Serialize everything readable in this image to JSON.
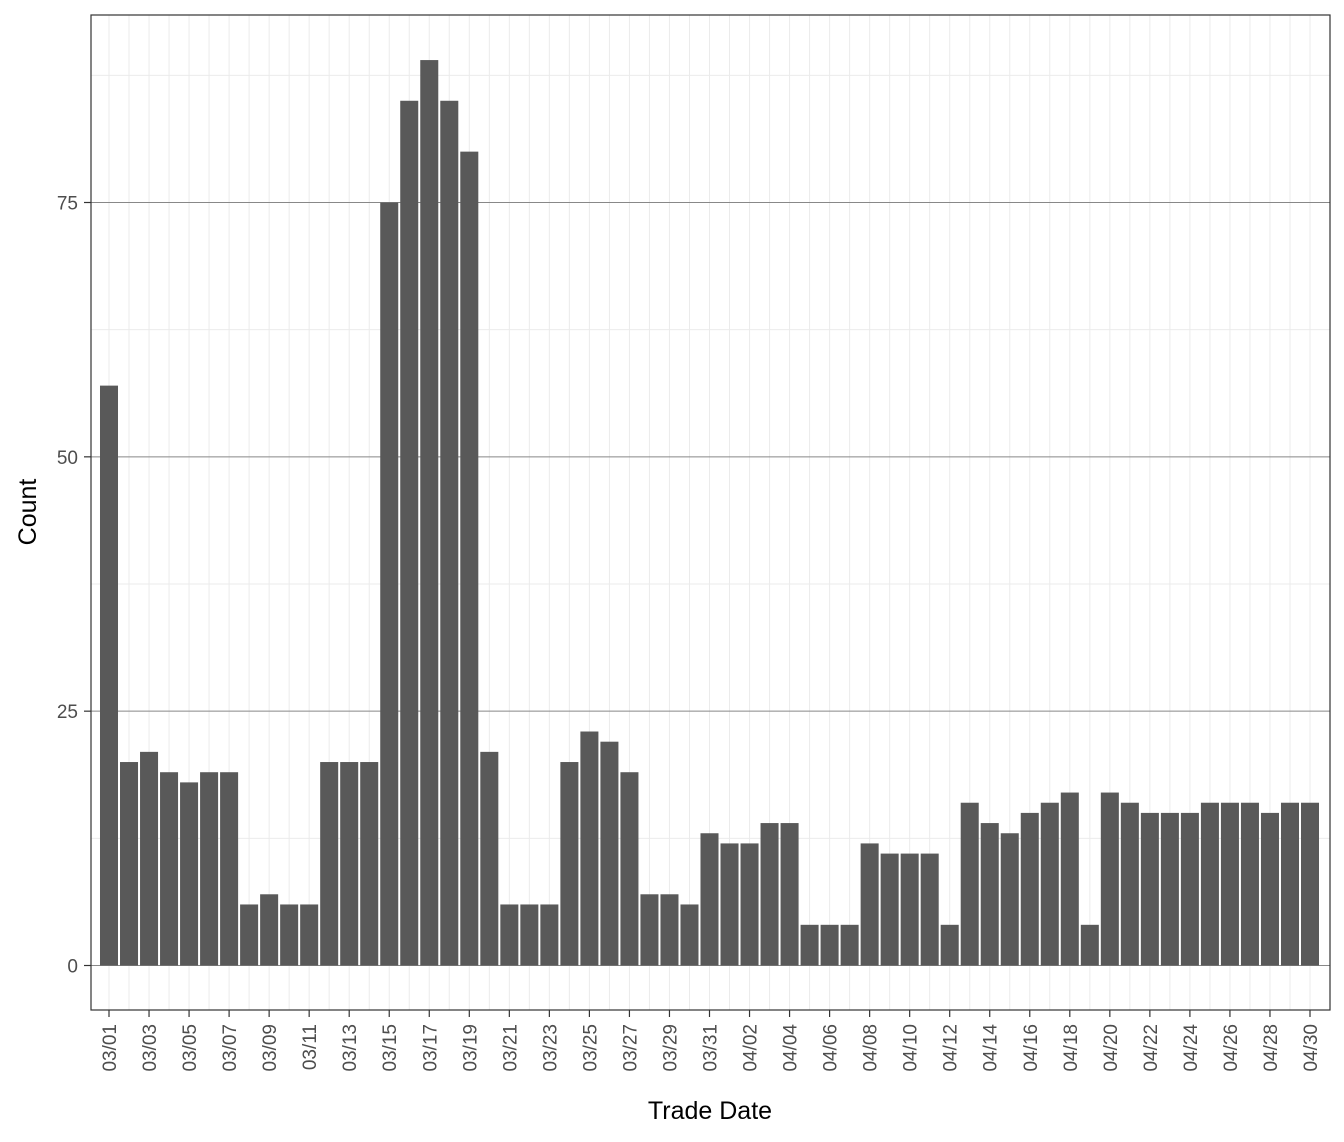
{
  "chart_data": {
    "type": "bar",
    "xlabel": "Trade Date",
    "ylabel": "Count",
    "ylim": [
      0,
      93.5
    ],
    "yticks": [
      0,
      25,
      50,
      75
    ],
    "grid": true,
    "bar_color": "#595959",
    "categories": [
      "03/01",
      "03/02",
      "03/03",
      "03/04",
      "03/05",
      "03/06",
      "03/07",
      "03/08",
      "03/09",
      "03/10",
      "03/11",
      "03/12",
      "03/13",
      "03/14",
      "03/15",
      "03/16",
      "03/17",
      "03/18",
      "03/19",
      "03/20",
      "03/21",
      "03/22",
      "03/23",
      "03/24",
      "03/25",
      "03/26",
      "03/27",
      "03/28",
      "03/29",
      "03/30",
      "03/31",
      "04/01",
      "04/02",
      "04/03",
      "04/04",
      "04/05",
      "04/06",
      "04/07",
      "04/08",
      "04/09",
      "04/10",
      "04/11",
      "04/12",
      "04/13",
      "04/14",
      "04/15",
      "04/16",
      "04/17",
      "04/18",
      "04/19",
      "04/20",
      "04/21",
      "04/22",
      "04/23",
      "04/24",
      "04/25",
      "04/26",
      "04/27",
      "04/28",
      "04/29",
      "04/30"
    ],
    "values": [
      57,
      20,
      21,
      19,
      18,
      19,
      19,
      6,
      7,
      6,
      6,
      20,
      20,
      20,
      75,
      85,
      89,
      85,
      80,
      21,
      6,
      6,
      6,
      20,
      23,
      22,
      19,
      7,
      7,
      6,
      13,
      12,
      12,
      14,
      14,
      4,
      4,
      4,
      12,
      11,
      11,
      11,
      4,
      16,
      14,
      13,
      15,
      16,
      17,
      4,
      17,
      16,
      15,
      15,
      15,
      16,
      16,
      16,
      15,
      16,
      16
    ],
    "tick_labels": [
      "03/01",
      "03/03",
      "03/05",
      "03/07",
      "03/09",
      "03/11",
      "03/13",
      "03/15",
      "03/17",
      "03/19",
      "03/21",
      "03/23",
      "03/25",
      "03/27",
      "03/29",
      "03/31",
      "04/02",
      "04/04",
      "04/06",
      "04/08",
      "04/10",
      "04/12",
      "04/14",
      "04/16",
      "04/18",
      "04/20",
      "04/22",
      "04/24",
      "04/26",
      "04/28",
      "04/30"
    ]
  }
}
